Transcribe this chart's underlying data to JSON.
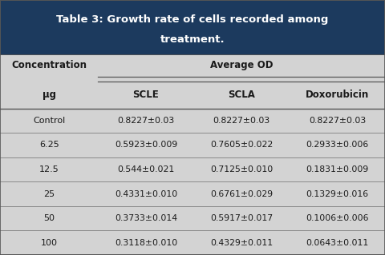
{
  "title_line1": "Table 3: Growth rate of cells recorded among",
  "title_line2": "treatment.",
  "title_bg_color": "#1C3A5E",
  "title_text_color": "#FFFFFF",
  "col_headers": [
    "SCLE",
    "SCLA",
    "Doxorubicin"
  ],
  "row_labels": [
    "Control",
    "6.25",
    "12.5",
    "25",
    "50",
    "100"
  ],
  "data": [
    [
      "0.8227±0.03",
      "0.8227±0.03",
      "0.8227±0.03"
    ],
    [
      "0.5923±0.009",
      "0.7605±0.022",
      "0.2933±0.006"
    ],
    [
      "0.544±0.021",
      "0.7125±0.010",
      "0.1831±0.009"
    ],
    [
      "0.4331±0.010",
      "0.6761±0.029",
      "0.1329±0.016"
    ],
    [
      "0.3733±0.014",
      "0.5917±0.017",
      "0.1006±0.006"
    ],
    [
      "0.3118±0.010",
      "0.4329±0.011",
      "0.0643±0.011"
    ]
  ],
  "bg_color": "#D3D3D3",
  "border_color": "#555555",
  "text_color": "#1A1A1A",
  "figsize": [
    4.8,
    3.19
  ],
  "dpi": 100
}
